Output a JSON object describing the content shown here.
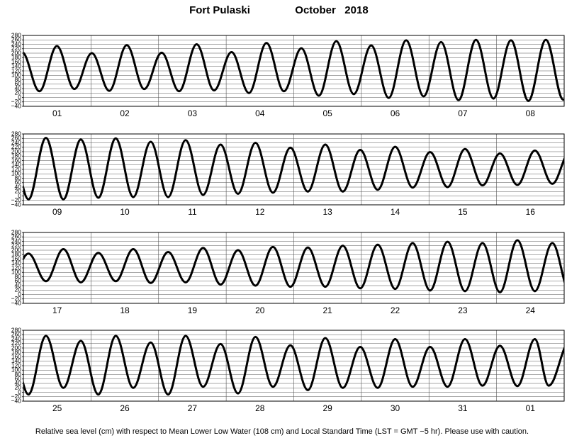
{
  "title": "Fort Pulaski",
  "period": "October   2018",
  "footnote": "Relative sea level (cm) with respect to Mean Lower Low Water (108 cm) and Local Standard Time (LST = GMT −5 hr). Please use with caution.",
  "chart_data": [
    {
      "type": "line",
      "categories": [
        "01",
        "02",
        "03",
        "04",
        "05",
        "06",
        "07",
        "08"
      ],
      "xlim": [
        0,
        192
      ],
      "ylim": [
        -40,
        280
      ],
      "yticks": [
        {
          "value": -40,
          "label": "−40"
        },
        {
          "value": -20,
          "label": "−20"
        },
        0,
        20,
        40,
        60,
        80,
        100,
        120,
        140,
        160,
        180,
        200,
        220,
        240,
        260,
        280
      ],
      "grid": true,
      "color": "#000000",
      "x": [
        -0.5,
        5.7,
        11.9,
        18.1,
        24.3,
        30.5,
        36.7,
        42.9,
        49.1,
        55.3,
        61.5,
        67.7,
        73.9,
        80.1,
        86.3,
        92.5,
        98.7,
        104.9,
        111.1,
        117.3,
        123.5,
        129.7,
        135.9,
        142.1,
        148.3,
        154.5,
        160.7,
        166.9,
        173.1,
        179.3,
        185.5,
        191.7,
        197.9
      ],
      "values": [
        205,
        28,
        232,
        38,
        200,
        30,
        236,
        38,
        202,
        28,
        240,
        32,
        205,
        20,
        246,
        28,
        222,
        8,
        254,
        15,
        235,
        -2,
        258,
        5,
        250,
        -12,
        260,
        -5,
        258,
        -15,
        260,
        -10,
        258
      ]
    },
    {
      "type": "line",
      "categories": [
        "09",
        "10",
        "11",
        "12",
        "13",
        "14",
        "15",
        "16"
      ],
      "xlim": [
        0,
        192
      ],
      "ylim": [
        -40,
        280
      ],
      "yticks": [
        {
          "value": -40,
          "label": "−40"
        },
        {
          "value": -20,
          "label": "−20"
        },
        0,
        20,
        40,
        60,
        80,
        100,
        120,
        140,
        160,
        180,
        200,
        220,
        240,
        260,
        280
      ],
      "grid": true,
      "color": "#000000",
      "x": [
        -4.4,
        1.8,
        8,
        14.2,
        20.4,
        26.6,
        32.8,
        39,
        45.2,
        51.4,
        57.6,
        63.8,
        70,
        76.2,
        82.4,
        88.6,
        94.8,
        101,
        107.2,
        113.4,
        119.6,
        125.8,
        132,
        138.2,
        144.4,
        150.6,
        156.8,
        163,
        169.2,
        175.4,
        181.6,
        187.8,
        194
      ],
      "values": [
        240,
        -15,
        262,
        -15,
        255,
        -8,
        260,
        -5,
        245,
        -5,
        252,
        5,
        232,
        10,
        240,
        15,
        218,
        20,
        232,
        20,
        208,
        28,
        222,
        38,
        198,
        40,
        212,
        48,
        192,
        50,
        205,
        55,
        200
      ]
    },
    {
      "type": "line",
      "categories": [
        "17",
        "18",
        "19",
        "20",
        "21",
        "22",
        "23",
        "24"
      ],
      "xlim": [
        0,
        192
      ],
      "ylim": [
        -40,
        280
      ],
      "yticks": [
        {
          "value": -40,
          "label": "−40"
        },
        {
          "value": -20,
          "label": "−20"
        },
        0,
        20,
        40,
        60,
        80,
        100,
        120,
        140,
        160,
        180,
        200,
        220,
        240,
        260,
        280
      ],
      "grid": true,
      "color": "#000000",
      "x": [
        -4.4,
        1.8,
        8,
        14.2,
        20.4,
        26.6,
        32.8,
        39,
        45.2,
        51.4,
        57.6,
        63.8,
        70,
        76.2,
        82.4,
        88.6,
        94.8,
        101,
        107.2,
        113.4,
        119.6,
        125.8,
        132,
        138.2,
        144.4,
        150.6,
        156.8,
        163,
        169.2,
        175.4,
        181.6,
        187.8,
        194
      ],
      "values": [
        70,
        185,
        60,
        205,
        55,
        188,
        60,
        205,
        52,
        192,
        55,
        210,
        45,
        200,
        40,
        215,
        35,
        212,
        35,
        220,
        28,
        225,
        25,
        232,
        18,
        238,
        15,
        232,
        10,
        245,
        15,
        232,
        10
      ]
    },
    {
      "type": "line",
      "categories": [
        "25",
        "26",
        "27",
        "28",
        "29",
        "30",
        "31",
        "01"
      ],
      "xlim": [
        0,
        192
      ],
      "ylim": [
        -40,
        280
      ],
      "yticks": [
        {
          "value": -40,
          "label": "−40"
        },
        {
          "value": -20,
          "label": "−20"
        },
        0,
        20,
        40,
        60,
        80,
        100,
        120,
        140,
        160,
        180,
        200,
        220,
        240,
        260,
        280
      ],
      "grid": true,
      "color": "#000000",
      "x": [
        -4.4,
        1.8,
        8,
        14.2,
        20.4,
        26.6,
        32.8,
        39,
        45.2,
        51.4,
        57.6,
        63.8,
        70,
        76.2,
        82.4,
        88.6,
        94.8,
        101,
        107.2,
        113.4,
        119.6,
        125.8,
        132,
        138.2,
        144.4,
        150.6,
        156.8,
        163,
        169.2,
        175.4,
        181.6,
        186.5,
        194
      ],
      "values": [
        230,
        -10,
        255,
        20,
        232,
        -10,
        255,
        20,
        225,
        -10,
        255,
        25,
        218,
        -5,
        250,
        25,
        212,
        10,
        245,
        20,
        205,
        20,
        240,
        25,
        205,
        25,
        240,
        30,
        210,
        28,
        240,
        30,
        230
      ]
    }
  ]
}
